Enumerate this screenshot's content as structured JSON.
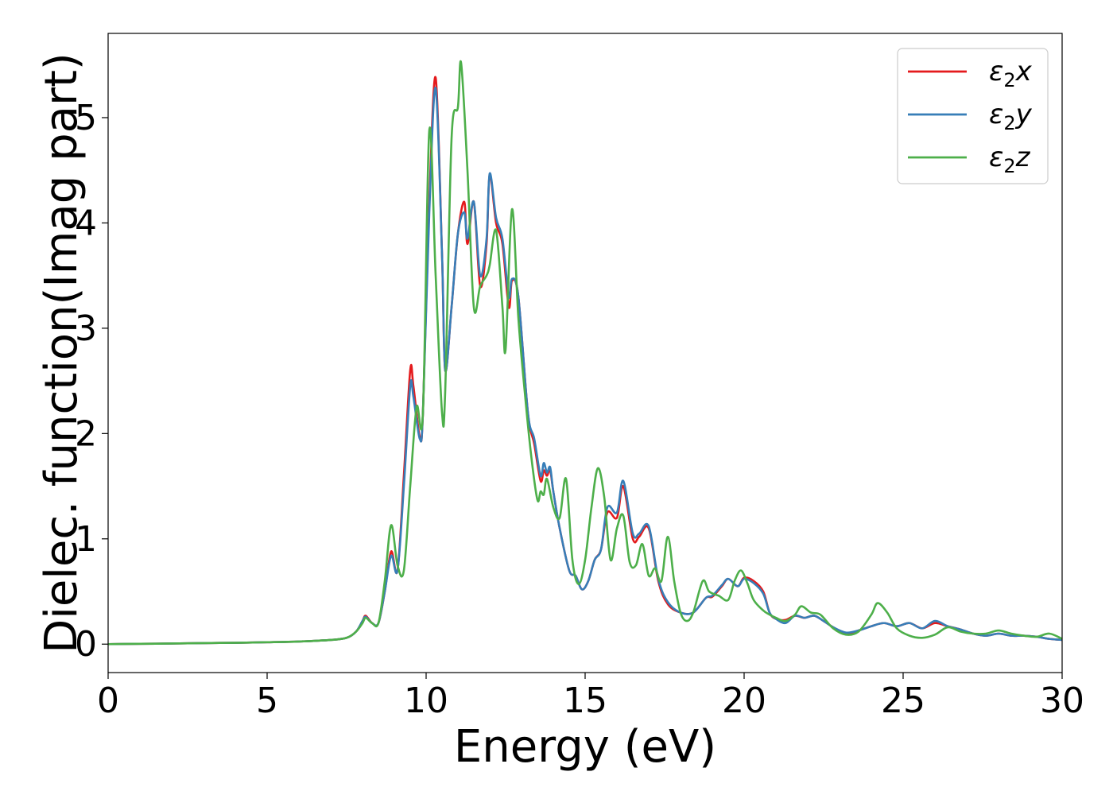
{
  "chart_data": {
    "type": "line",
    "xlabel": "Energy (eV)",
    "ylabel": "Dielec. function(Imag part)",
    "xlim": [
      0,
      30
    ],
    "ylim": [
      -0.27,
      5.8
    ],
    "xticks": [
      0,
      5,
      10,
      15,
      20,
      25,
      30
    ],
    "yticks": [
      0,
      1,
      2,
      3,
      4,
      5
    ],
    "grid": false,
    "legend_position": "top-right",
    "series": [
      {
        "name": "ε₂x",
        "legend_base": "ε",
        "legend_sub": "2",
        "legend_suffix": "x",
        "color": "#e41a1c",
        "x": [
          0,
          1,
          2,
          3,
          4,
          5,
          6,
          7,
          7.5,
          7.8,
          8.0,
          8.1,
          8.3,
          8.5,
          8.7,
          8.9,
          9.1,
          9.3,
          9.5,
          9.6,
          9.8,
          9.9,
          10.1,
          10.3,
          10.5,
          10.6,
          10.8,
          11.0,
          11.2,
          11.3,
          11.5,
          11.7,
          11.9,
          12.0,
          12.2,
          12.4,
          12.6,
          12.7,
          12.9,
          13.2,
          13.4,
          13.6,
          13.7,
          13.8,
          13.9,
          14.0,
          14.2,
          14.5,
          14.7,
          14.9,
          15.1,
          15.3,
          15.5,
          15.7,
          16.0,
          16.2,
          16.5,
          16.7,
          17.0,
          17.3,
          17.6,
          18.0,
          18.4,
          18.8,
          19.0,
          19.3,
          19.5,
          19.8,
          20.0,
          20.3,
          20.6,
          20.8,
          21.0,
          21.3,
          21.6,
          21.9,
          22.2,
          22.5,
          22.8,
          23.2,
          23.6,
          24.0,
          24.4,
          24.8,
          25.2,
          25.6,
          26.0,
          26.4,
          26.8,
          27.2,
          27.6,
          28.0,
          28.4,
          28.8,
          29.2,
          29.6,
          30
        ],
        "y": [
          0,
          0.003,
          0.006,
          0.01,
          0.013,
          0.018,
          0.025,
          0.04,
          0.06,
          0.12,
          0.22,
          0.27,
          0.2,
          0.2,
          0.5,
          0.88,
          0.7,
          1.6,
          2.6,
          2.45,
          1.97,
          2.2,
          4.2,
          5.38,
          3.7,
          2.6,
          3.2,
          3.9,
          4.2,
          3.8,
          4.2,
          3.4,
          3.8,
          4.46,
          4.0,
          3.8,
          3.2,
          3.45,
          3.3,
          2.2,
          1.9,
          1.55,
          1.65,
          1.6,
          1.65,
          1.45,
          1.1,
          0.7,
          0.65,
          0.52,
          0.6,
          0.8,
          0.9,
          1.25,
          1.2,
          1.5,
          1.0,
          1.02,
          1.1,
          0.6,
          0.38,
          0.3,
          0.3,
          0.44,
          0.45,
          0.55,
          0.62,
          0.55,
          0.63,
          0.6,
          0.5,
          0.3,
          0.24,
          0.23,
          0.27,
          0.25,
          0.27,
          0.22,
          0.16,
          0.1,
          0.13,
          0.17,
          0.2,
          0.17,
          0.2,
          0.15,
          0.2,
          0.17,
          0.14,
          0.1,
          0.08,
          0.1,
          0.08,
          0.08,
          0.07,
          0.05,
          0.04
        ]
      },
      {
        "name": "ε₂y",
        "legend_base": "ε",
        "legend_sub": "2",
        "legend_suffix": "y",
        "color": "#377eb8",
        "x": [
          0,
          1,
          2,
          3,
          4,
          5,
          6,
          7,
          7.5,
          7.8,
          8.0,
          8.1,
          8.3,
          8.5,
          8.7,
          8.9,
          9.1,
          9.3,
          9.5,
          9.6,
          9.8,
          9.9,
          10.1,
          10.3,
          10.5,
          10.6,
          10.8,
          11.0,
          11.2,
          11.3,
          11.5,
          11.7,
          11.9,
          12.0,
          12.2,
          12.4,
          12.6,
          12.7,
          12.9,
          13.2,
          13.4,
          13.6,
          13.7,
          13.8,
          13.9,
          14.0,
          14.2,
          14.5,
          14.7,
          14.9,
          15.1,
          15.3,
          15.5,
          15.7,
          16.0,
          16.2,
          16.5,
          16.7,
          17.0,
          17.3,
          17.6,
          18.0,
          18.4,
          18.8,
          19.0,
          19.3,
          19.5,
          19.8,
          20.0,
          20.3,
          20.6,
          20.8,
          21.0,
          21.3,
          21.6,
          21.9,
          22.2,
          22.5,
          22.8,
          23.2,
          23.6,
          24.0,
          24.4,
          24.8,
          25.2,
          25.6,
          26.0,
          26.4,
          26.8,
          27.2,
          27.6,
          28.0,
          28.4,
          28.8,
          29.2,
          29.6,
          30
        ],
        "y": [
          0,
          0.003,
          0.006,
          0.01,
          0.013,
          0.018,
          0.025,
          0.04,
          0.06,
          0.12,
          0.22,
          0.26,
          0.2,
          0.2,
          0.5,
          0.84,
          0.7,
          1.5,
          2.45,
          2.35,
          1.95,
          2.2,
          4.1,
          5.28,
          3.7,
          2.6,
          3.2,
          3.9,
          4.1,
          3.85,
          4.2,
          3.5,
          3.85,
          4.47,
          4.05,
          3.85,
          3.3,
          3.47,
          3.3,
          2.2,
          1.95,
          1.6,
          1.72,
          1.63,
          1.68,
          1.45,
          1.1,
          0.7,
          0.65,
          0.52,
          0.6,
          0.8,
          0.9,
          1.3,
          1.25,
          1.55,
          1.05,
          1.05,
          1.12,
          0.62,
          0.4,
          0.3,
          0.3,
          0.44,
          0.46,
          0.56,
          0.62,
          0.55,
          0.62,
          0.58,
          0.48,
          0.3,
          0.24,
          0.2,
          0.27,
          0.25,
          0.27,
          0.22,
          0.16,
          0.11,
          0.13,
          0.17,
          0.2,
          0.17,
          0.2,
          0.15,
          0.22,
          0.17,
          0.14,
          0.1,
          0.08,
          0.1,
          0.08,
          0.08,
          0.07,
          0.05,
          0.04
        ]
      },
      {
        "name": "ε₂z",
        "legend_base": "ε",
        "legend_sub": "2",
        "legend_suffix": "z",
        "color": "#4daf4a",
        "x": [
          0,
          1,
          2,
          3,
          4,
          5,
          6,
          7,
          7.5,
          7.8,
          8.0,
          8.1,
          8.3,
          8.5,
          8.7,
          8.9,
          9.1,
          9.3,
          9.5,
          9.7,
          9.9,
          10.1,
          10.3,
          10.5,
          10.6,
          10.8,
          11.0,
          11.1,
          11.3,
          11.5,
          11.7,
          11.9,
          12.0,
          12.2,
          12.4,
          12.5,
          12.7,
          12.9,
          13.1,
          13.3,
          13.5,
          13.6,
          13.7,
          13.8,
          14.0,
          14.2,
          14.4,
          14.6,
          14.8,
          15.0,
          15.2,
          15.4,
          15.6,
          15.8,
          16.0,
          16.2,
          16.4,
          16.6,
          16.8,
          17.0,
          17.2,
          17.4,
          17.6,
          17.8,
          18.0,
          18.2,
          18.4,
          18.7,
          18.9,
          19.2,
          19.5,
          19.7,
          19.9,
          20.1,
          20.3,
          20.6,
          20.8,
          21.0,
          21.3,
          21.6,
          21.8,
          22.1,
          22.4,
          22.8,
          23.2,
          23.6,
          24.0,
          24.2,
          24.5,
          24.8,
          25.2,
          25.6,
          26.0,
          26.4,
          26.8,
          27.2,
          27.6,
          28.0,
          28.4,
          28.8,
          29.2,
          29.6,
          30
        ],
        "y": [
          0,
          0.003,
          0.006,
          0.01,
          0.013,
          0.018,
          0.025,
          0.04,
          0.06,
          0.12,
          0.2,
          0.25,
          0.2,
          0.2,
          0.6,
          1.13,
          0.75,
          0.7,
          1.5,
          2.25,
          2.2,
          4.88,
          3.5,
          2.2,
          2.4,
          4.8,
          5.1,
          5.52,
          4.5,
          3.2,
          3.4,
          3.5,
          3.6,
          3.93,
          3.2,
          2.8,
          4.13,
          3.1,
          2.4,
          1.8,
          1.37,
          1.45,
          1.42,
          1.57,
          1.3,
          1.2,
          1.57,
          0.8,
          0.57,
          0.8,
          1.3,
          1.67,
          1.4,
          0.8,
          1.1,
          1.22,
          0.78,
          0.75,
          0.95,
          0.65,
          0.72,
          0.6,
          1.02,
          0.6,
          0.3,
          0.22,
          0.3,
          0.6,
          0.5,
          0.46,
          0.42,
          0.6,
          0.7,
          0.58,
          0.42,
          0.32,
          0.28,
          0.25,
          0.22,
          0.28,
          0.36,
          0.3,
          0.28,
          0.15,
          0.09,
          0.12,
          0.28,
          0.39,
          0.3,
          0.15,
          0.08,
          0.06,
          0.09,
          0.16,
          0.12,
          0.1,
          0.1,
          0.13,
          0.1,
          0.08,
          0.07,
          0.1,
          0.05
        ]
      }
    ]
  }
}
